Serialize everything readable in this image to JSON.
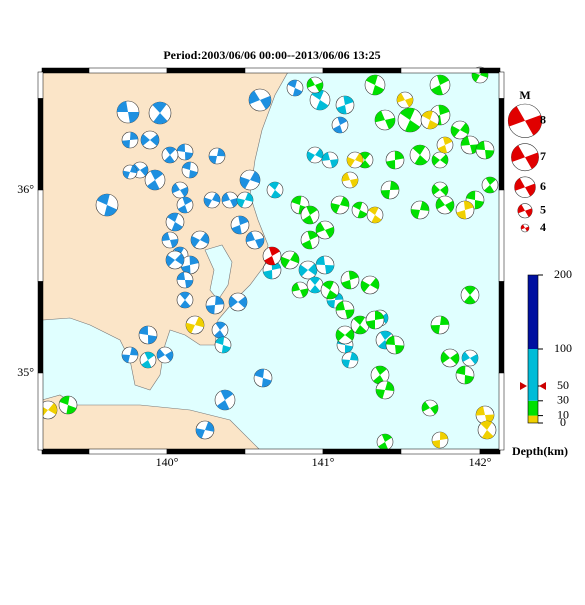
{
  "title": "Period:2003/06/06 00:00--2013/06/06 13:25",
  "map": {
    "lon_labels": [
      "140°",
      "141°",
      "142°"
    ],
    "lat_labels": [
      "36°",
      "35°"
    ]
  },
  "magnitude_legend": {
    "title": "M",
    "values": [
      8,
      7,
      6,
      5,
      4
    ]
  },
  "depth_legend": {
    "title": "Depth(km)",
    "ticks": [
      0,
      10,
      30,
      50,
      100,
      200
    ],
    "band_colors": [
      "#f0d000",
      "#00e000",
      "#00bcd8",
      "#00bcd8",
      "#0010a0"
    ],
    "marker": 50
  }
}
